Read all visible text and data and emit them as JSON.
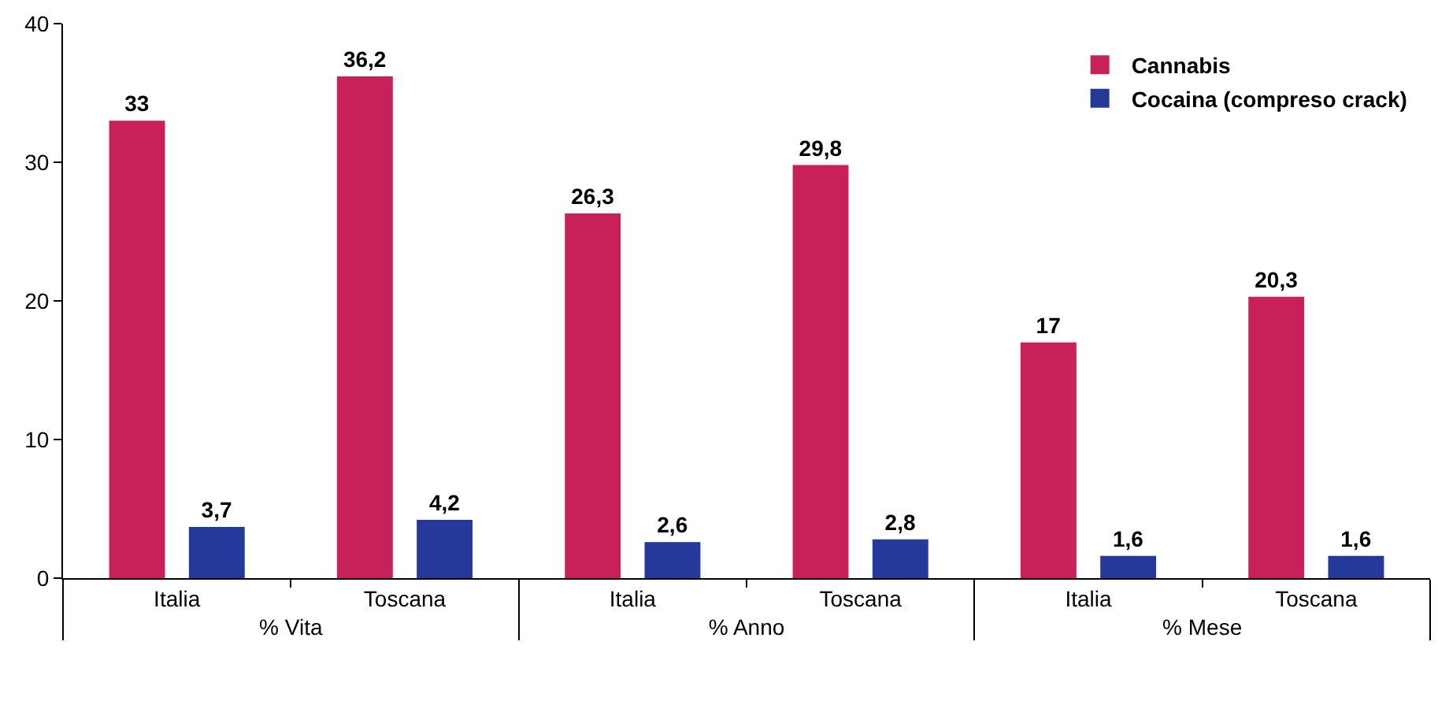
{
  "chart_data": {
    "type": "bar",
    "categories": [
      "Italia",
      "Toscana",
      "Italia",
      "Toscana",
      "Italia",
      "Toscana"
    ],
    "annotations": [
      "% Vita",
      "% Anno",
      "% Mese"
    ],
    "series": [
      {
        "name": "Cannabis",
        "color": "#c8205a",
        "values": [
          33,
          36.2,
          26.3,
          29.8,
          17,
          20.3
        ],
        "value_labels": [
          "33",
          "36,2",
          "26,3",
          "29,8",
          "17",
          "20,3"
        ]
      },
      {
        "name": "Cocaina (compreso crack)",
        "color": "#25399a",
        "values": [
          3.7,
          4.2,
          2.6,
          2.8,
          1.6,
          1.6
        ],
        "value_labels": [
          "3,7",
          "4,2",
          "2,6",
          "2,8",
          "1,6",
          "1,6"
        ]
      }
    ],
    "ylim": [
      0,
      40
    ],
    "yticks": [
      0,
      10,
      20,
      30,
      40
    ],
    "grid": false,
    "legend": "top right"
  }
}
